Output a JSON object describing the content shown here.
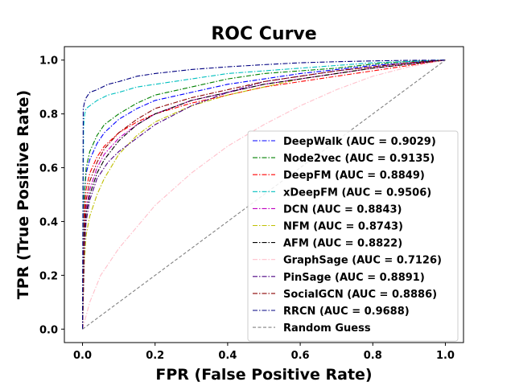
{
  "chart_data": {
    "type": "line",
    "title": "ROC Curve",
    "xlabel": "FPR (False Positive Rate)",
    "ylabel": "TPR (True Positive Rate)",
    "xlim": [
      -0.05,
      1.05
    ],
    "ylim": [
      -0.05,
      1.05
    ],
    "xticks": [
      "0.0",
      "0.2",
      "0.4",
      "0.6",
      "0.8",
      "1.0"
    ],
    "yticks": [
      "0.0",
      "0.2",
      "0.4",
      "0.6",
      "0.8",
      "1.0"
    ],
    "grid": false,
    "legend_position": "lower-right",
    "series": [
      {
        "name": "DeepWalk (AUC = 0.9029)",
        "color": "#0000ff",
        "dash": "dashdot",
        "x": [
          0,
          0.005,
          0.01,
          0.02,
          0.04,
          0.06,
          0.1,
          0.15,
          0.2,
          0.3,
          0.4,
          0.5,
          0.6,
          0.7,
          0.8,
          0.9,
          1.0
        ],
        "y": [
          0,
          0.5,
          0.58,
          0.63,
          0.69,
          0.73,
          0.78,
          0.82,
          0.85,
          0.88,
          0.91,
          0.93,
          0.95,
          0.965,
          0.98,
          0.99,
          1.0
        ]
      },
      {
        "name": "Node2vec (AUC = 0.9135)",
        "color": "#008000",
        "dash": "dashdot",
        "x": [
          0,
          0.005,
          0.01,
          0.02,
          0.04,
          0.06,
          0.1,
          0.15,
          0.2,
          0.3,
          0.4,
          0.5,
          0.6,
          0.7,
          0.8,
          0.9,
          1.0
        ],
        "y": [
          0,
          0.5,
          0.6,
          0.66,
          0.72,
          0.76,
          0.8,
          0.84,
          0.87,
          0.9,
          0.93,
          0.95,
          0.96,
          0.97,
          0.985,
          0.995,
          1.0
        ]
      },
      {
        "name": "DeepFM (AUC = 0.8849)",
        "color": "#ff0000",
        "dash": "dashdot",
        "x": [
          0,
          0.005,
          0.01,
          0.02,
          0.04,
          0.06,
          0.1,
          0.15,
          0.2,
          0.3,
          0.4,
          0.5,
          0.6,
          0.7,
          0.8,
          0.9,
          1.0
        ],
        "y": [
          0,
          0.45,
          0.52,
          0.58,
          0.64,
          0.68,
          0.73,
          0.77,
          0.8,
          0.84,
          0.87,
          0.9,
          0.92,
          0.94,
          0.96,
          0.98,
          1.0
        ]
      },
      {
        "name": "xDeepFM (AUC = 0.9506)",
        "color": "#00bfbf",
        "dash": "dashdot",
        "x": [
          0,
          0.003,
          0.006,
          0.01,
          0.02,
          0.04,
          0.07,
          0.1,
          0.15,
          0.2,
          0.3,
          0.4,
          0.5,
          0.6,
          0.7,
          0.8,
          0.9,
          1.0
        ],
        "y": [
          0,
          0.75,
          0.8,
          0.82,
          0.83,
          0.85,
          0.87,
          0.88,
          0.9,
          0.91,
          0.93,
          0.95,
          0.96,
          0.97,
          0.98,
          0.99,
          0.995,
          1.0
        ]
      },
      {
        "name": "DCN (AUC = 0.8843)",
        "color": "#bf00bf",
        "dash": "dashdot",
        "x": [
          0,
          0.005,
          0.01,
          0.02,
          0.04,
          0.06,
          0.1,
          0.15,
          0.2,
          0.3,
          0.4,
          0.5,
          0.6,
          0.7,
          0.8,
          0.9,
          1.0
        ],
        "y": [
          0,
          0.35,
          0.45,
          0.52,
          0.6,
          0.65,
          0.71,
          0.76,
          0.8,
          0.85,
          0.88,
          0.91,
          0.93,
          0.95,
          0.97,
          0.985,
          1.0
        ]
      },
      {
        "name": "NFM (AUC = 0.8743)",
        "color": "#bfbf00",
        "dash": "dashdot",
        "x": [
          0,
          0.005,
          0.01,
          0.02,
          0.04,
          0.06,
          0.1,
          0.15,
          0.2,
          0.3,
          0.4,
          0.5,
          0.6,
          0.7,
          0.8,
          0.9,
          1.0
        ],
        "y": [
          0,
          0.25,
          0.35,
          0.42,
          0.5,
          0.56,
          0.65,
          0.72,
          0.77,
          0.83,
          0.87,
          0.9,
          0.93,
          0.95,
          0.97,
          0.985,
          1.0
        ]
      },
      {
        "name": "AFM (AUC = 0.8822)",
        "color": "#000000",
        "dash": "dashdot",
        "x": [
          0,
          0.005,
          0.01,
          0.02,
          0.04,
          0.06,
          0.1,
          0.15,
          0.2,
          0.3,
          0.4,
          0.5,
          0.6,
          0.7,
          0.8,
          0.9,
          1.0
        ],
        "y": [
          0,
          0.33,
          0.43,
          0.5,
          0.58,
          0.63,
          0.7,
          0.76,
          0.8,
          0.85,
          0.88,
          0.91,
          0.93,
          0.95,
          0.97,
          0.985,
          1.0
        ]
      },
      {
        "name": "GraphSage (AUC = 0.7126)",
        "color": "#ffc0cb",
        "dash": "dashdot",
        "x": [
          0,
          0.02,
          0.05,
          0.1,
          0.15,
          0.2,
          0.3,
          0.4,
          0.5,
          0.6,
          0.7,
          0.8,
          0.9,
          1.0
        ],
        "y": [
          0,
          0.1,
          0.2,
          0.3,
          0.38,
          0.46,
          0.58,
          0.68,
          0.76,
          0.83,
          0.89,
          0.94,
          0.975,
          1.0
        ]
      },
      {
        "name": "PinSage (AUC = 0.8891)",
        "color": "#4b0082",
        "dash": "dashdot",
        "x": [
          0,
          0.005,
          0.01,
          0.02,
          0.04,
          0.07,
          0.1,
          0.15,
          0.2,
          0.3,
          0.4,
          0.5,
          0.6,
          0.7,
          0.8,
          0.9,
          1.0
        ],
        "y": [
          0,
          0.3,
          0.4,
          0.48,
          0.56,
          0.62,
          0.66,
          0.71,
          0.76,
          0.83,
          0.88,
          0.92,
          0.94,
          0.96,
          0.975,
          0.99,
          1.0
        ]
      },
      {
        "name": "SocialGCN (AUC = 0.8886)",
        "color": "#8b0000",
        "dash": "dashdot",
        "x": [
          0,
          0.005,
          0.01,
          0.02,
          0.04,
          0.06,
          0.1,
          0.15,
          0.2,
          0.3,
          0.4,
          0.5,
          0.6,
          0.7,
          0.8,
          0.9,
          1.0
        ],
        "y": [
          0,
          0.4,
          0.48,
          0.55,
          0.62,
          0.67,
          0.73,
          0.78,
          0.82,
          0.86,
          0.89,
          0.92,
          0.94,
          0.96,
          0.975,
          0.99,
          1.0
        ]
      },
      {
        "name": "RRCN (AUC = 0.9688)",
        "color": "#000080",
        "dash": "dashdot",
        "x": [
          0,
          0.002,
          0.005,
          0.01,
          0.02,
          0.04,
          0.07,
          0.1,
          0.15,
          0.2,
          0.3,
          0.4,
          0.5,
          0.6,
          0.7,
          0.8,
          0.9,
          1.0
        ],
        "y": [
          0,
          0.82,
          0.84,
          0.86,
          0.88,
          0.89,
          0.91,
          0.92,
          0.94,
          0.95,
          0.965,
          0.975,
          0.983,
          0.99,
          0.994,
          0.997,
          0.999,
          1.0
        ]
      },
      {
        "name": "Random Guess",
        "color": "#808080",
        "dash": "dashed",
        "x": [
          0,
          1
        ],
        "y": [
          0,
          1
        ]
      }
    ]
  }
}
